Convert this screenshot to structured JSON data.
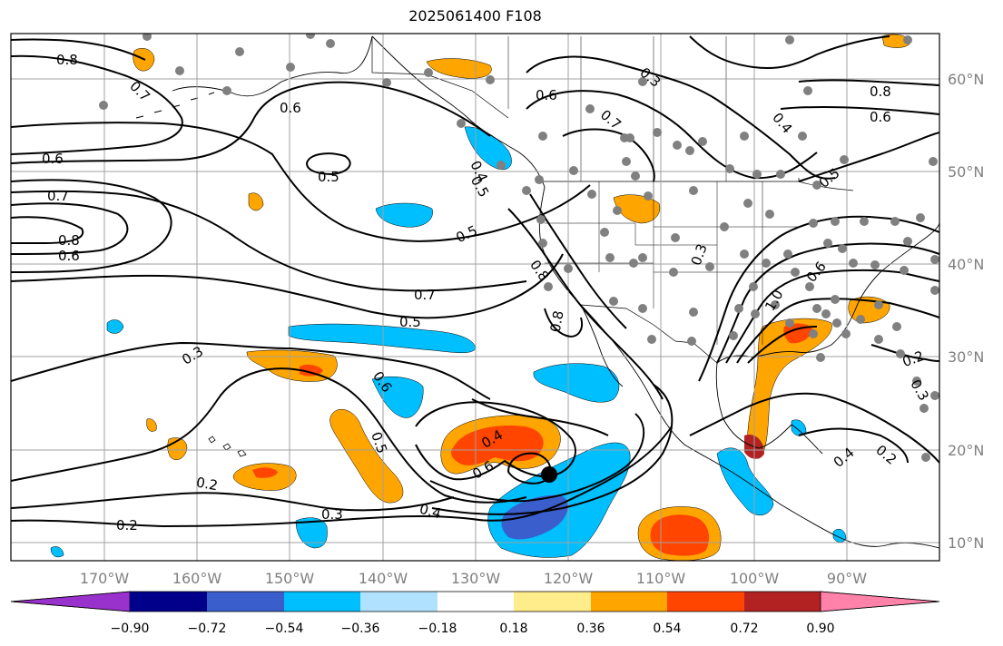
{
  "title": "2025061400 F108",
  "longitude_labels": [
    "170°W",
    "160°W",
    "150°W",
    "140°W",
    "130°W",
    "120°W",
    "110°W",
    "100°W",
    "90°W"
  ],
  "latitude_labels": [
    "60°N",
    "50°N",
    "40°N",
    "30°N",
    "20°N",
    "10°N"
  ],
  "contour_labels": [
    "0.8",
    "0.7",
    "0.6",
    "0.6",
    "0.5",
    "0.7",
    "0.8",
    "0.6",
    "0.6",
    "0.5",
    "0.4",
    "0.5",
    "0.7",
    "0.5",
    "0.3",
    "0.6",
    "0.5",
    "0.4",
    "0.6",
    "0.2",
    "0.3",
    "0.4",
    "0.2",
    "0.8",
    "0.8",
    "0.7",
    "0.3",
    "0.8",
    "0.6",
    "0.4",
    "0.5",
    "0.3",
    "0.6",
    "1.0",
    "0.2",
    "0.3",
    "0.4",
    "0.2"
  ],
  "colorbar": {
    "colors": [
      "#9932cc",
      "#00008b",
      "#3a5fcd",
      "#00bfff",
      "#b0e2ff",
      "#ffffff",
      "#ffec8b",
      "#ffa500",
      "#ff4500",
      "#b22222",
      "#ff82ab"
    ],
    "tick_labels": [
      "−0.90",
      "−0.72",
      "−0.54",
      "−0.36",
      "−0.18",
      "0.18",
      "0.36",
      "0.54",
      "0.72",
      "0.90"
    ]
  },
  "colors": {
    "frame": "#000000",
    "grid": "#a0a0a0",
    "station": "#808080",
    "storm_center": "#000000"
  }
}
